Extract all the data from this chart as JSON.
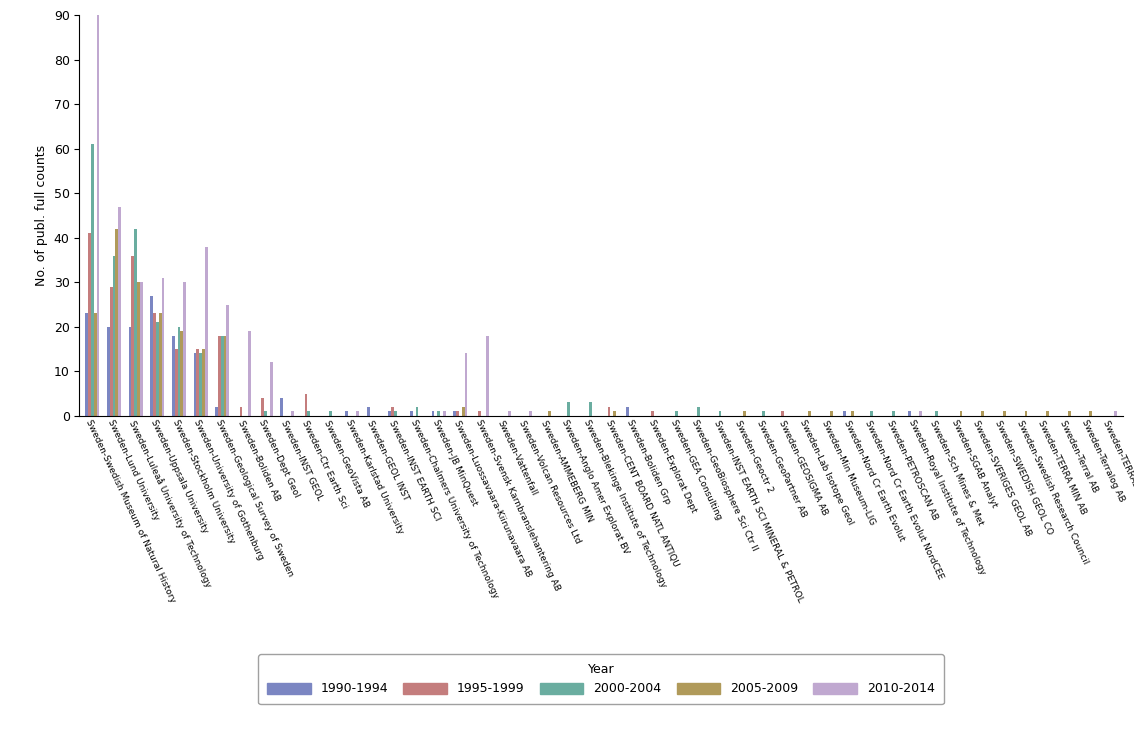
{
  "categories": [
    "Sweden-Swedish Museum of Natural History",
    "Sweden-Lund University",
    "Sweden-Luleaå University of Technology",
    "Sweden-Uppsala University",
    "Sweden-Stockholm University",
    "Sweden-University of Gothenburg",
    "Sweden-Geological Survey of Sweden",
    "Sweden-Boliden AB",
    "Sweden-Dept Geol",
    "Sweden-INST GEOL",
    "Sweden-Ctr Earth Sci",
    "Sweden-GeoVista AB",
    "Sweden-Karlstad University",
    "Sweden-GEOL INST",
    "Sweden-INST EARTH SCI",
    "Sweden-Chalmers University of Technology",
    "Sweden-JB MinQuest",
    "Sweden-Luossavaara-Kiirunavaara AB",
    "Sweden-Svensk Karnbranslehantering AB",
    "Sweden-Vattenfall",
    "Sweden-Volcan Resources Ltd",
    "Sweden-AMMEBERG MIN",
    "Sweden-Anglo Amer Explorat BV",
    "Sweden-Blekinge Institute of Technology",
    "Sweden-CENT BOARD NATL ANTIQU",
    "Sweden-Boliden Grp",
    "Sweden-Explorat Dept",
    "Sweden-GEA Consulting",
    "Sweden-GeoBiosphere Sci Ctr II",
    "Sweden-INST EARTH SCI MINERAL & PETROL",
    "Sweden-Geoctr 2",
    "Sweden-GeoPartner AB",
    "Sweden-GEOSIGMA AB",
    "Sweden-Lab Isotope Geol",
    "Sweden-Min Museum-LIG",
    "Sweden-Nord Cr Earth Evolut",
    "Sweden-Nord Cr Earth Evolut NordCEE",
    "Sweden-PETROSCAN AB",
    "Sweden-Royal Institute of Technology",
    "Sweden-Sch Mines & Met",
    "Sweden-SGAB Analyt",
    "Sweden-SVERIGES GEOL AB",
    "Sweden-SWEDISH GEOL CO",
    "Sweden-Swedish Research Council",
    "Sweden-TERRA MIN AB",
    "Sweden-Terral AB",
    "Sweden-Terralog AB",
    "Sweden-TERRALOGICA AB"
  ],
  "series": {
    "1990-1994": [
      23,
      20,
      20,
      27,
      18,
      14,
      2,
      0,
      0,
      4,
      0,
      0,
      1,
      2,
      1,
      1,
      1,
      1,
      0,
      0,
      0,
      0,
      0,
      0,
      0,
      2,
      0,
      0,
      0,
      0,
      0,
      0,
      0,
      0,
      0,
      1,
      0,
      0,
      1,
      0,
      0,
      0,
      0,
      0,
      0,
      0,
      0,
      0
    ],
    "1995-1999": [
      41,
      29,
      36,
      23,
      15,
      15,
      18,
      2,
      4,
      0,
      5,
      0,
      0,
      0,
      2,
      0,
      0,
      1,
      1,
      0,
      0,
      0,
      0,
      0,
      2,
      0,
      1,
      0,
      0,
      0,
      0,
      0,
      1,
      0,
      0,
      0,
      0,
      0,
      0,
      0,
      0,
      0,
      0,
      0,
      0,
      0,
      0,
      0
    ],
    "2000-2004": [
      61,
      36,
      42,
      21,
      20,
      14,
      18,
      0,
      1,
      0,
      1,
      1,
      0,
      0,
      1,
      2,
      1,
      0,
      0,
      0,
      0,
      0,
      3,
      3,
      0,
      0,
      0,
      1,
      2,
      1,
      0,
      1,
      0,
      0,
      0,
      0,
      1,
      1,
      0,
      1,
      0,
      0,
      0,
      0,
      0,
      0,
      0,
      0
    ],
    "2005-2009": [
      23,
      42,
      30,
      23,
      19,
      15,
      18,
      0,
      0,
      0,
      0,
      0,
      0,
      0,
      0,
      0,
      0,
      2,
      0,
      0,
      0,
      1,
      0,
      0,
      1,
      0,
      0,
      0,
      0,
      0,
      1,
      0,
      0,
      1,
      1,
      1,
      0,
      0,
      0,
      0,
      1,
      1,
      1,
      1,
      1,
      1,
      1,
      0
    ],
    "2010-2014": [
      90,
      47,
      30,
      31,
      30,
      38,
      25,
      19,
      12,
      1,
      0,
      0,
      1,
      0,
      0,
      0,
      1,
      14,
      18,
      1,
      1,
      0,
      0,
      0,
      0,
      0,
      0,
      0,
      0,
      0,
      0,
      0,
      0,
      0,
      0,
      0,
      0,
      0,
      1,
      0,
      0,
      0,
      0,
      0,
      0,
      0,
      0,
      1
    ]
  },
  "colors": {
    "1990-1994": "#7b86c2",
    "1995-1999": "#c47d7d",
    "2000-2004": "#6aada0",
    "2005-2009": "#b09a5a",
    "2010-2014": "#c0a8d0"
  },
  "ylabel": "No. of publ. full counts",
  "ylim": [
    0,
    90
  ],
  "yticks": [
    0,
    10,
    20,
    30,
    40,
    50,
    60,
    70,
    80,
    90
  ],
  "legend_title": "Year",
  "background_color": "#ffffff"
}
